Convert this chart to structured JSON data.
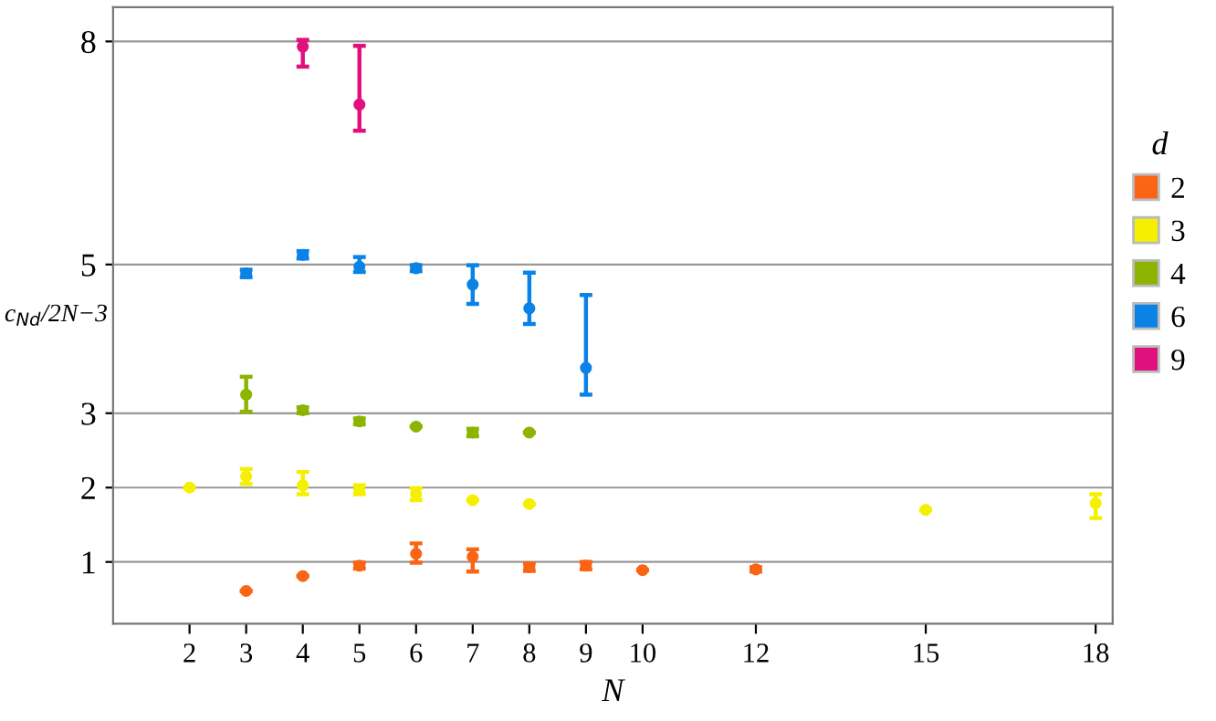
{
  "chart_data": {
    "type": "scatter",
    "xlabel": "N",
    "ylabel": "c$_{Nd}$/2N−3",
    "legend_title": "d",
    "legend": "right",
    "grid": "y",
    "marker": "circle",
    "xlim": [
      0.65,
      18.3
    ],
    "ylim": [
      0.17,
      8.46
    ],
    "xticks": [
      2,
      3,
      4,
      5,
      6,
      7,
      8,
      9,
      10,
      12,
      15,
      18
    ],
    "yticks": [
      1,
      2,
      3,
      5,
      8
    ],
    "series": [
      {
        "name": "2",
        "color": "#fa6414",
        "x": [
          3,
          4,
          5,
          6,
          7,
          8,
          9,
          10,
          12
        ],
        "values": [
          0.61,
          0.81,
          0.95,
          1.11,
          1.07,
          0.93,
          0.95,
          0.89,
          0.9
        ],
        "errors": [
          null,
          null,
          [
            0.91,
            0.99
          ],
          [
            0.99,
            1.25
          ],
          [
            0.87,
            1.17
          ],
          [
            0.88,
            0.98
          ],
          [
            0.9,
            1.0
          ],
          null,
          [
            0.87,
            0.93
          ]
        ]
      },
      {
        "name": "3",
        "color": "#f5f000",
        "x": [
          2,
          3,
          4,
          5,
          6,
          7,
          8,
          15,
          18
        ],
        "values": [
          2.0,
          2.15,
          2.03,
          1.97,
          1.91,
          1.83,
          1.78,
          1.7,
          1.79
        ],
        "errors": [
          null,
          [
            2.05,
            2.25
          ],
          [
            1.91,
            2.21
          ],
          [
            1.91,
            2.03
          ],
          [
            1.83,
            1.99
          ],
          null,
          null,
          null,
          [
            1.59,
            1.91
          ]
        ]
      },
      {
        "name": "4",
        "color": "#8cb400",
        "x": [
          3,
          4,
          5,
          6,
          7,
          8
        ],
        "values": [
          3.25,
          3.04,
          2.89,
          2.82,
          2.74,
          2.74
        ],
        "errors": [
          [
            3.02,
            3.49
          ],
          [
            3.0,
            3.08
          ],
          [
            2.85,
            2.93
          ],
          null,
          [
            2.69,
            2.79
          ],
          null
        ]
      },
      {
        "name": "6",
        "color": "#0a82e6",
        "x": [
          3,
          4,
          5,
          6,
          7,
          8,
          9
        ],
        "values": [
          4.88,
          5.13,
          4.97,
          4.95,
          4.73,
          4.41,
          3.61
        ],
        "errors": [
          [
            4.83,
            4.93
          ],
          [
            5.08,
            5.18
          ],
          [
            4.9,
            5.1
          ],
          [
            4.91,
            4.99
          ],
          [
            4.47,
            4.99
          ],
          [
            4.2,
            4.89
          ],
          [
            3.25,
            4.59
          ]
        ]
      },
      {
        "name": "9",
        "color": "#e0107c",
        "x": [
          4,
          5
        ],
        "values": [
          7.93,
          7.15
        ],
        "errors": [
          [
            7.66,
            8.02
          ],
          [
            6.8,
            7.94
          ]
        ]
      }
    ]
  }
}
